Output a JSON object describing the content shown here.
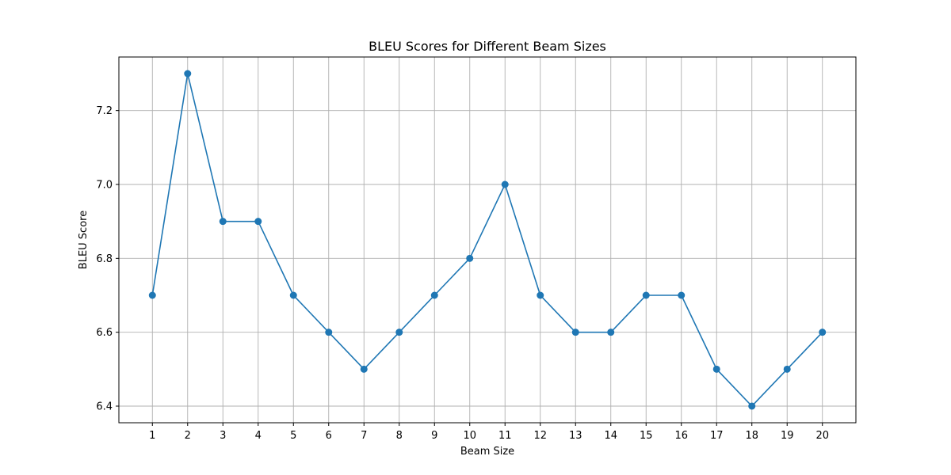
{
  "chart_data": {
    "type": "line",
    "title": "BLEU Scores for Different Beam Sizes",
    "xlabel": "Beam Size",
    "ylabel": "BLEU Score",
    "x": [
      1,
      2,
      3,
      4,
      5,
      6,
      7,
      8,
      9,
      10,
      11,
      12,
      13,
      14,
      15,
      16,
      17,
      18,
      19,
      20
    ],
    "series": [
      {
        "values": [
          6.7,
          7.3,
          6.9,
          6.9,
          6.7,
          6.6,
          6.5,
          6.6,
          6.7,
          6.8,
          7.0,
          6.7,
          6.6,
          6.6,
          6.7,
          6.7,
          6.5,
          6.4,
          6.5,
          6.6
        ],
        "color": "#1f77b4",
        "marker": "circle"
      }
    ],
    "xlim": [
      0.05,
      20.95
    ],
    "ylim": [
      6.355,
      7.345
    ],
    "x_ticks": [
      "1",
      "2",
      "3",
      "4",
      "5",
      "6",
      "7",
      "8",
      "9",
      "10",
      "11",
      "12",
      "13",
      "14",
      "15",
      "16",
      "17",
      "18",
      "19",
      "20"
    ],
    "y_ticks": [
      "6.4",
      "6.6",
      "6.8",
      "7.0",
      "7.2"
    ],
    "grid": true
  }
}
